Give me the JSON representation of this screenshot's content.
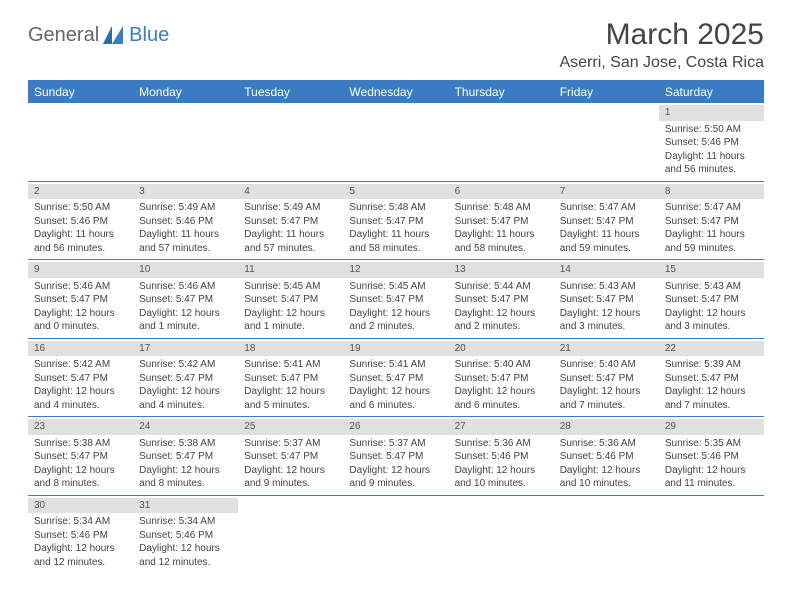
{
  "brand": {
    "part1": "General",
    "part2": "Blue"
  },
  "title": "March 2025",
  "location": "Aserri, San Jose, Costa Rica",
  "style": {
    "accent": "#3a7cc4",
    "daynum_bg": "#e0e0e0",
    "text": "#444444",
    "header_fontsize": 30,
    "location_fontsize": 16,
    "weekday_fontsize": 12,
    "cell_fontsize": 10
  },
  "weekdays": [
    "Sunday",
    "Monday",
    "Tuesday",
    "Wednesday",
    "Thursday",
    "Friday",
    "Saturday"
  ],
  "weeks": [
    [
      null,
      null,
      null,
      null,
      null,
      null,
      {
        "d": "1",
        "sr": "Sunrise: 5:50 AM",
        "ss": "Sunset: 5:46 PM",
        "dl1": "Daylight: 11 hours",
        "dl2": "and 56 minutes."
      }
    ],
    [
      {
        "d": "2",
        "sr": "Sunrise: 5:50 AM",
        "ss": "Sunset: 5:46 PM",
        "dl1": "Daylight: 11 hours",
        "dl2": "and 56 minutes."
      },
      {
        "d": "3",
        "sr": "Sunrise: 5:49 AM",
        "ss": "Sunset: 5:46 PM",
        "dl1": "Daylight: 11 hours",
        "dl2": "and 57 minutes."
      },
      {
        "d": "4",
        "sr": "Sunrise: 5:49 AM",
        "ss": "Sunset: 5:47 PM",
        "dl1": "Daylight: 11 hours",
        "dl2": "and 57 minutes."
      },
      {
        "d": "5",
        "sr": "Sunrise: 5:48 AM",
        "ss": "Sunset: 5:47 PM",
        "dl1": "Daylight: 11 hours",
        "dl2": "and 58 minutes."
      },
      {
        "d": "6",
        "sr": "Sunrise: 5:48 AM",
        "ss": "Sunset: 5:47 PM",
        "dl1": "Daylight: 11 hours",
        "dl2": "and 58 minutes."
      },
      {
        "d": "7",
        "sr": "Sunrise: 5:47 AM",
        "ss": "Sunset: 5:47 PM",
        "dl1": "Daylight: 11 hours",
        "dl2": "and 59 minutes."
      },
      {
        "d": "8",
        "sr": "Sunrise: 5:47 AM",
        "ss": "Sunset: 5:47 PM",
        "dl1": "Daylight: 11 hours",
        "dl2": "and 59 minutes."
      }
    ],
    [
      {
        "d": "9",
        "sr": "Sunrise: 5:46 AM",
        "ss": "Sunset: 5:47 PM",
        "dl1": "Daylight: 12 hours",
        "dl2": "and 0 minutes."
      },
      {
        "d": "10",
        "sr": "Sunrise: 5:46 AM",
        "ss": "Sunset: 5:47 PM",
        "dl1": "Daylight: 12 hours",
        "dl2": "and 1 minute."
      },
      {
        "d": "11",
        "sr": "Sunrise: 5:45 AM",
        "ss": "Sunset: 5:47 PM",
        "dl1": "Daylight: 12 hours",
        "dl2": "and 1 minute."
      },
      {
        "d": "12",
        "sr": "Sunrise: 5:45 AM",
        "ss": "Sunset: 5:47 PM",
        "dl1": "Daylight: 12 hours",
        "dl2": "and 2 minutes."
      },
      {
        "d": "13",
        "sr": "Sunrise: 5:44 AM",
        "ss": "Sunset: 5:47 PM",
        "dl1": "Daylight: 12 hours",
        "dl2": "and 2 minutes."
      },
      {
        "d": "14",
        "sr": "Sunrise: 5:43 AM",
        "ss": "Sunset: 5:47 PM",
        "dl1": "Daylight: 12 hours",
        "dl2": "and 3 minutes."
      },
      {
        "d": "15",
        "sr": "Sunrise: 5:43 AM",
        "ss": "Sunset: 5:47 PM",
        "dl1": "Daylight: 12 hours",
        "dl2": "and 3 minutes."
      }
    ],
    [
      {
        "d": "16",
        "sr": "Sunrise: 5:42 AM",
        "ss": "Sunset: 5:47 PM",
        "dl1": "Daylight: 12 hours",
        "dl2": "and 4 minutes."
      },
      {
        "d": "17",
        "sr": "Sunrise: 5:42 AM",
        "ss": "Sunset: 5:47 PM",
        "dl1": "Daylight: 12 hours",
        "dl2": "and 4 minutes."
      },
      {
        "d": "18",
        "sr": "Sunrise: 5:41 AM",
        "ss": "Sunset: 5:47 PM",
        "dl1": "Daylight: 12 hours",
        "dl2": "and 5 minutes."
      },
      {
        "d": "19",
        "sr": "Sunrise: 5:41 AM",
        "ss": "Sunset: 5:47 PM",
        "dl1": "Daylight: 12 hours",
        "dl2": "and 6 minutes."
      },
      {
        "d": "20",
        "sr": "Sunrise: 5:40 AM",
        "ss": "Sunset: 5:47 PM",
        "dl1": "Daylight: 12 hours",
        "dl2": "and 6 minutes."
      },
      {
        "d": "21",
        "sr": "Sunrise: 5:40 AM",
        "ss": "Sunset: 5:47 PM",
        "dl1": "Daylight: 12 hours",
        "dl2": "and 7 minutes."
      },
      {
        "d": "22",
        "sr": "Sunrise: 5:39 AM",
        "ss": "Sunset: 5:47 PM",
        "dl1": "Daylight: 12 hours",
        "dl2": "and 7 minutes."
      }
    ],
    [
      {
        "d": "23",
        "sr": "Sunrise: 5:38 AM",
        "ss": "Sunset: 5:47 PM",
        "dl1": "Daylight: 12 hours",
        "dl2": "and 8 minutes."
      },
      {
        "d": "24",
        "sr": "Sunrise: 5:38 AM",
        "ss": "Sunset: 5:47 PM",
        "dl1": "Daylight: 12 hours",
        "dl2": "and 8 minutes."
      },
      {
        "d": "25",
        "sr": "Sunrise: 5:37 AM",
        "ss": "Sunset: 5:47 PM",
        "dl1": "Daylight: 12 hours",
        "dl2": "and 9 minutes."
      },
      {
        "d": "26",
        "sr": "Sunrise: 5:37 AM",
        "ss": "Sunset: 5:47 PM",
        "dl1": "Daylight: 12 hours",
        "dl2": "and 9 minutes."
      },
      {
        "d": "27",
        "sr": "Sunrise: 5:36 AM",
        "ss": "Sunset: 5:46 PM",
        "dl1": "Daylight: 12 hours",
        "dl2": "and 10 minutes."
      },
      {
        "d": "28",
        "sr": "Sunrise: 5:36 AM",
        "ss": "Sunset: 5:46 PM",
        "dl1": "Daylight: 12 hours",
        "dl2": "and 10 minutes."
      },
      {
        "d": "29",
        "sr": "Sunrise: 5:35 AM",
        "ss": "Sunset: 5:46 PM",
        "dl1": "Daylight: 12 hours",
        "dl2": "and 11 minutes."
      }
    ],
    [
      {
        "d": "30",
        "sr": "Sunrise: 5:34 AM",
        "ss": "Sunset: 5:46 PM",
        "dl1": "Daylight: 12 hours",
        "dl2": "and 12 minutes."
      },
      {
        "d": "31",
        "sr": "Sunrise: 5:34 AM",
        "ss": "Sunset: 5:46 PM",
        "dl1": "Daylight: 12 hours",
        "dl2": "and 12 minutes."
      },
      null,
      null,
      null,
      null,
      null
    ]
  ]
}
